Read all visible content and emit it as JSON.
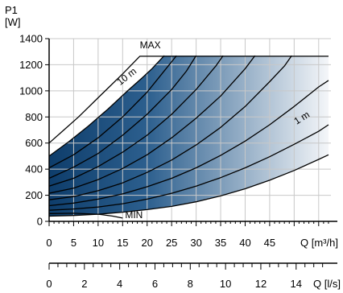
{
  "chart_data": {
    "type": "line",
    "ylabel_line1": "P1",
    "ylabel_line2": "[W]",
    "xlabel": "Q [m³/h]",
    "xlabel2": "Q [l/s]",
    "xlim": [
      0,
      57.5
    ],
    "ylim": [
      0,
      1400
    ],
    "yticks": [
      0,
      200,
      400,
      600,
      800,
      1000,
      1200,
      1400
    ],
    "xticks": [
      0,
      5,
      10,
      15,
      20,
      25,
      30,
      35,
      40,
      45
    ],
    "xticks_ls": [
      0,
      2,
      4,
      6,
      8,
      10,
      12,
      14
    ],
    "grid": true,
    "fill_gradient": {
      "dark": "#0e3d6b",
      "light": "#f4f6f9"
    },
    "annotations": {
      "max": {
        "text": "MAX",
        "x": 18.5,
        "y": 1325
      },
      "min": {
        "text": "MIN",
        "x": 15.5,
        "y": 25
      },
      "ten_m": {
        "text": "10 m",
        "x": 14.5,
        "y": 1040
      },
      "one_m": {
        "text": "1 m",
        "x": 50.5,
        "y": 740
      }
    },
    "series": [
      {
        "points": [
          [
            0,
            600
          ],
          [
            3,
            700
          ],
          [
            6,
            800
          ],
          [
            9,
            910
          ],
          [
            12,
            1020
          ],
          [
            15,
            1130
          ],
          [
            18.5,
            1265
          ],
          [
            57,
            1265
          ]
        ]
      },
      {
        "points": [
          [
            0,
            500
          ],
          [
            4,
            610
          ],
          [
            8,
            730
          ],
          [
            12,
            860
          ],
          [
            16,
            1000
          ],
          [
            19,
            1100
          ],
          [
            21,
            1170
          ],
          [
            23.5,
            1270
          ]
        ]
      },
      {
        "points": [
          [
            0,
            410
          ],
          [
            5,
            510
          ],
          [
            10,
            640
          ],
          [
            15,
            800
          ],
          [
            20,
            990
          ],
          [
            23,
            1130
          ],
          [
            26,
            1270
          ]
        ]
      },
      {
        "points": [
          [
            0,
            330
          ],
          [
            5,
            415
          ],
          [
            10,
            520
          ],
          [
            15,
            660
          ],
          [
            20,
            820
          ],
          [
            25,
            1010
          ],
          [
            28,
            1150
          ],
          [
            30,
            1270
          ]
        ]
      },
      {
        "points": [
          [
            0,
            270
          ],
          [
            5,
            330
          ],
          [
            10,
            420
          ],
          [
            15,
            530
          ],
          [
            20,
            660
          ],
          [
            25,
            820
          ],
          [
            30,
            1010
          ],
          [
            34,
            1190
          ],
          [
            35.5,
            1270
          ]
        ]
      },
      {
        "points": [
          [
            0,
            215
          ],
          [
            5,
            255
          ],
          [
            10,
            320
          ],
          [
            15,
            405
          ],
          [
            20,
            510
          ],
          [
            25,
            640
          ],
          [
            30,
            790
          ],
          [
            35,
            960
          ],
          [
            40,
            1170
          ],
          [
            42,
            1270
          ]
        ]
      },
      {
        "points": [
          [
            0,
            165
          ],
          [
            5,
            190
          ],
          [
            10,
            235
          ],
          [
            15,
            295
          ],
          [
            20,
            375
          ],
          [
            25,
            470
          ],
          [
            30,
            585
          ],
          [
            35,
            720
          ],
          [
            40,
            880
          ],
          [
            45,
            1070
          ],
          [
            48,
            1190
          ],
          [
            49.5,
            1270
          ]
        ]
      },
      {
        "points": [
          [
            0,
            120
          ],
          [
            5,
            140
          ],
          [
            10,
            170
          ],
          [
            15,
            210
          ],
          [
            20,
            265
          ],
          [
            25,
            330
          ],
          [
            30,
            410
          ],
          [
            35,
            505
          ],
          [
            40,
            615
          ],
          [
            45,
            740
          ],
          [
            50,
            880
          ],
          [
            55,
            1030
          ],
          [
            57,
            1080
          ]
        ]
      },
      {
        "points": [
          [
            0,
            85
          ],
          [
            5,
            95
          ],
          [
            10,
            110
          ],
          [
            15,
            135
          ],
          [
            20,
            170
          ],
          [
            25,
            215
          ],
          [
            30,
            270
          ],
          [
            35,
            335
          ],
          [
            40,
            410
          ],
          [
            45,
            495
          ],
          [
            50,
            590
          ],
          [
            55,
            690
          ],
          [
            57,
            740
          ]
        ]
      },
      {
        "points": [
          [
            0,
            40
          ],
          [
            5,
            45
          ],
          [
            10,
            55
          ],
          [
            15,
            70
          ],
          [
            20,
            90
          ],
          [
            25,
            115
          ],
          [
            30,
            150
          ],
          [
            35,
            195
          ],
          [
            40,
            250
          ],
          [
            45,
            315
          ],
          [
            50,
            390
          ],
          [
            55,
            475
          ],
          [
            57,
            510
          ]
        ]
      },
      {
        "points": [
          [
            0,
            60
          ],
          [
            5,
            62
          ],
          [
            10,
            55
          ],
          [
            13,
            40
          ],
          [
            15,
            25
          ]
        ]
      }
    ]
  }
}
